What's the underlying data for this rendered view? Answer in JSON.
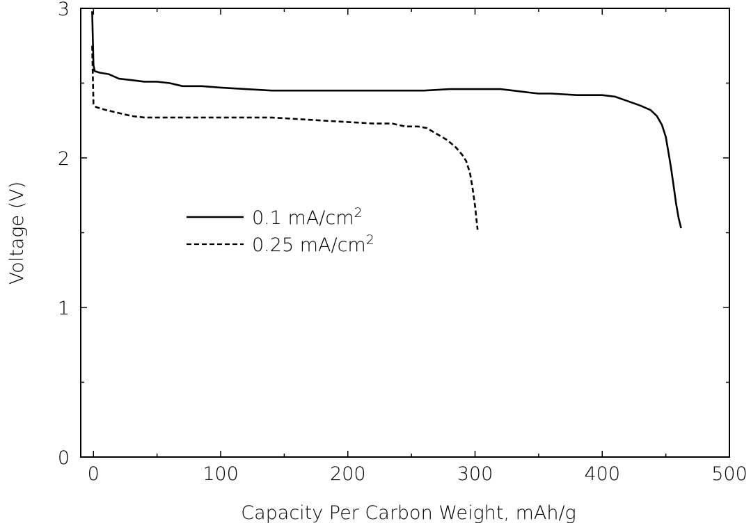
{
  "chart_data": {
    "type": "line",
    "xlabel": "Capacity Per Carbon Weight, mAh/g",
    "ylabel": "Voltage (V)",
    "xlim": [
      -10,
      500
    ],
    "ylim": [
      0,
      3
    ],
    "x_ticks": [
      0,
      100,
      200,
      300,
      400,
      500
    ],
    "x_minor_ticks": [
      50,
      150,
      250,
      350,
      450
    ],
    "y_ticks": [
      0,
      1,
      2,
      3
    ],
    "y_minor_ticks": [
      0.5,
      1.5,
      2.5
    ],
    "grid": false,
    "legend_placement": "center-left",
    "series": [
      {
        "name": "0.1 mA/cm2",
        "legend_label": "0.1 mA/cm",
        "legend_sup": "2",
        "style": "solid",
        "color": "#000000",
        "points": [
          [
            -1,
            2.98
          ],
          [
            0,
            2.62
          ],
          [
            1,
            2.58
          ],
          [
            5,
            2.57
          ],
          [
            12,
            2.56
          ],
          [
            20,
            2.53
          ],
          [
            30,
            2.52
          ],
          [
            40,
            2.51
          ],
          [
            50,
            2.51
          ],
          [
            60,
            2.5
          ],
          [
            70,
            2.48
          ],
          [
            85,
            2.48
          ],
          [
            100,
            2.47
          ],
          [
            120,
            2.46
          ],
          [
            140,
            2.45
          ],
          [
            160,
            2.45
          ],
          [
            180,
            2.45
          ],
          [
            200,
            2.45
          ],
          [
            220,
            2.45
          ],
          [
            240,
            2.45
          ],
          [
            260,
            2.45
          ],
          [
            280,
            2.46
          ],
          [
            300,
            2.46
          ],
          [
            320,
            2.46
          ],
          [
            330,
            2.45
          ],
          [
            340,
            2.44
          ],
          [
            350,
            2.43
          ],
          [
            360,
            2.43
          ],
          [
            380,
            2.42
          ],
          [
            400,
            2.42
          ],
          [
            410,
            2.41
          ],
          [
            420,
            2.38
          ],
          [
            430,
            2.35
          ],
          [
            438,
            2.32
          ],
          [
            443,
            2.28
          ],
          [
            447,
            2.22
          ],
          [
            450,
            2.14
          ],
          [
            452,
            2.04
          ],
          [
            454,
            1.94
          ],
          [
            456,
            1.82
          ],
          [
            458,
            1.7
          ],
          [
            460,
            1.6
          ],
          [
            462,
            1.53
          ]
        ]
      },
      {
        "name": "0.25 mA/cm2",
        "legend_label": "0.25 mA/cm",
        "legend_sup": "2",
        "style": "dashed",
        "color": "#000000",
        "points": [
          [
            -1,
            2.75
          ],
          [
            0,
            2.36
          ],
          [
            2,
            2.34
          ],
          [
            10,
            2.32
          ],
          [
            20,
            2.3
          ],
          [
            30,
            2.28
          ],
          [
            40,
            2.27
          ],
          [
            60,
            2.27
          ],
          [
            80,
            2.27
          ],
          [
            100,
            2.27
          ],
          [
            120,
            2.27
          ],
          [
            140,
            2.27
          ],
          [
            160,
            2.26
          ],
          [
            180,
            2.25
          ],
          [
            200,
            2.24
          ],
          [
            220,
            2.23
          ],
          [
            235,
            2.23
          ],
          [
            245,
            2.21
          ],
          [
            255,
            2.21
          ],
          [
            262,
            2.2
          ],
          [
            270,
            2.16
          ],
          [
            278,
            2.12
          ],
          [
            285,
            2.07
          ],
          [
            290,
            2.02
          ],
          [
            293,
            1.98
          ],
          [
            296,
            1.9
          ],
          [
            298,
            1.8
          ],
          [
            300,
            1.68
          ],
          [
            301,
            1.6
          ],
          [
            302,
            1.52
          ]
        ]
      }
    ]
  }
}
